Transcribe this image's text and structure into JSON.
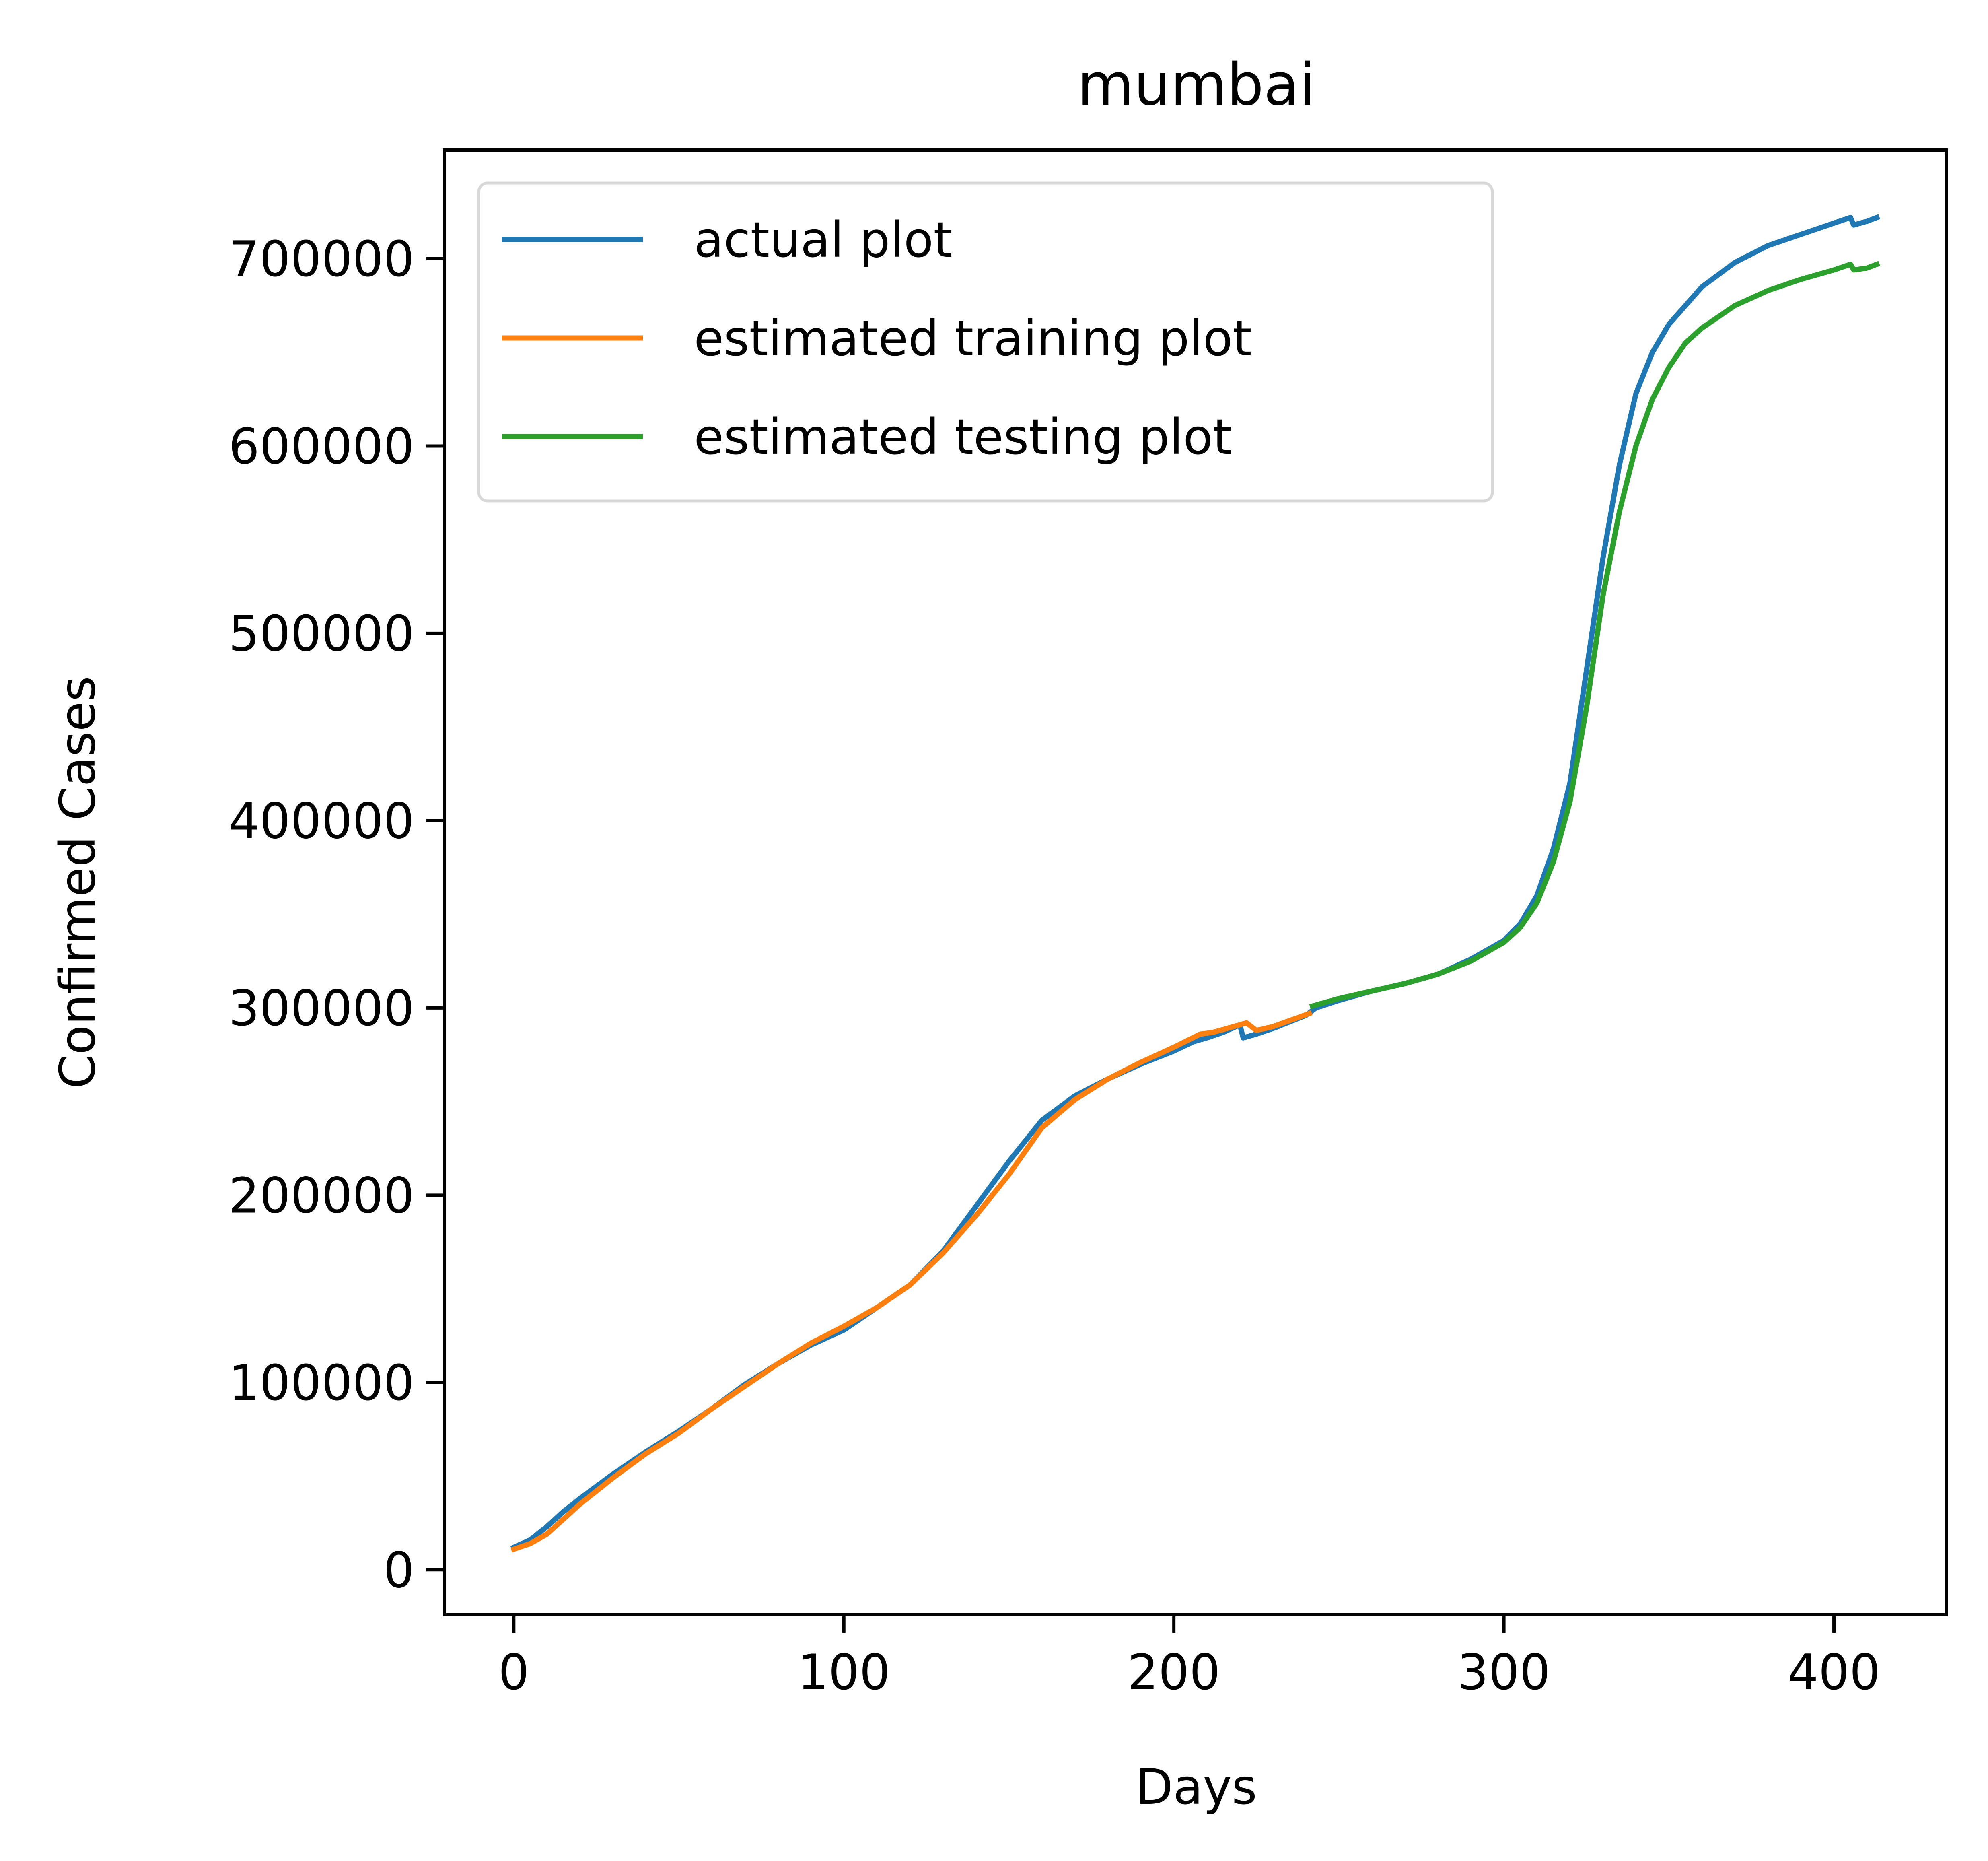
{
  "chart_data": {
    "type": "line",
    "title": "mumbai",
    "xlabel": "Days",
    "ylabel": "Confirmed Cases",
    "xlim": [
      -21,
      434
    ],
    "ylim": [
      -24000,
      758000
    ],
    "xticks": [
      0,
      100,
      200,
      300,
      400
    ],
    "xtick_labels": [
      "0",
      "100",
      "200",
      "300",
      "400"
    ],
    "yticks": [
      0,
      100000,
      200000,
      300000,
      400000,
      500000,
      600000,
      700000
    ],
    "ytick_labels": [
      "0",
      "100000",
      "200000",
      "300000",
      "400000",
      "500000",
      "600000",
      "700000"
    ],
    "grid": false,
    "legend_position": "upper-left",
    "series": [
      {
        "name": "actual plot",
        "color": "#1f77b4",
        "points": [
          [
            0,
            12000
          ],
          [
            5,
            16000
          ],
          [
            10,
            23000
          ],
          [
            15,
            31000
          ],
          [
            20,
            38000
          ],
          [
            30,
            51000
          ],
          [
            40,
            63000
          ],
          [
            50,
            74000
          ],
          [
            60,
            86000
          ],
          [
            70,
            99000
          ],
          [
            80,
            110000
          ],
          [
            90,
            120000
          ],
          [
            100,
            128000
          ],
          [
            110,
            140000
          ],
          [
            120,
            152000
          ],
          [
            130,
            170000
          ],
          [
            140,
            194000
          ],
          [
            150,
            218000
          ],
          [
            160,
            240000
          ],
          [
            170,
            253000
          ],
          [
            180,
            262000
          ],
          [
            190,
            270000
          ],
          [
            200,
            277000
          ],
          [
            206,
            282000
          ],
          [
            210,
            284000
          ],
          [
            215,
            287000
          ],
          [
            220,
            291000
          ],
          [
            221,
            284000
          ],
          [
            225,
            286000
          ],
          [
            230,
            289000
          ],
          [
            240,
            296000
          ],
          [
            243,
            300000
          ],
          [
            250,
            304000
          ],
          [
            260,
            309000
          ],
          [
            270,
            313000
          ],
          [
            280,
            318000
          ],
          [
            290,
            326000
          ],
          [
            300,
            336000
          ],
          [
            305,
            345000
          ],
          [
            310,
            360000
          ],
          [
            315,
            385000
          ],
          [
            320,
            420000
          ],
          [
            325,
            480000
          ],
          [
            330,
            540000
          ],
          [
            335,
            590000
          ],
          [
            340,
            628000
          ],
          [
            345,
            650000
          ],
          [
            350,
            665000
          ],
          [
            355,
            675000
          ],
          [
            360,
            685000
          ],
          [
            370,
            698000
          ],
          [
            380,
            707000
          ],
          [
            390,
            713000
          ],
          [
            400,
            719000
          ],
          [
            405,
            722000
          ],
          [
            406,
            718000
          ],
          [
            410,
            720000
          ],
          [
            413,
            722000
          ]
        ]
      },
      {
        "name": "estimated training plot",
        "color": "#ff7f0e",
        "points": [
          [
            0,
            11000
          ],
          [
            5,
            14000
          ],
          [
            10,
            19000
          ],
          [
            15,
            27000
          ],
          [
            20,
            35000
          ],
          [
            30,
            49000
          ],
          [
            40,
            62000
          ],
          [
            50,
            73000
          ],
          [
            60,
            86000
          ],
          [
            70,
            98000
          ],
          [
            80,
            110000
          ],
          [
            90,
            121000
          ],
          [
            100,
            130000
          ],
          [
            110,
            140000
          ],
          [
            120,
            152000
          ],
          [
            130,
            169000
          ],
          [
            140,
            189000
          ],
          [
            150,
            211000
          ],
          [
            160,
            236000
          ],
          [
            170,
            251000
          ],
          [
            180,
            262000
          ],
          [
            190,
            271000
          ],
          [
            200,
            279000
          ],
          [
            208,
            286000
          ],
          [
            212,
            287000
          ],
          [
            222,
            292000
          ],
          [
            225,
            288000
          ],
          [
            230,
            290000
          ],
          [
            241,
            297000
          ]
        ]
      },
      {
        "name": "estimated testing plot",
        "color": "#2ca02c",
        "points": [
          [
            242,
            301000
          ],
          [
            250,
            305000
          ],
          [
            260,
            309000
          ],
          [
            270,
            313000
          ],
          [
            280,
            318000
          ],
          [
            290,
            325000
          ],
          [
            300,
            335000
          ],
          [
            305,
            343000
          ],
          [
            310,
            356000
          ],
          [
            315,
            378000
          ],
          [
            320,
            410000
          ],
          [
            325,
            460000
          ],
          [
            330,
            520000
          ],
          [
            335,
            565000
          ],
          [
            340,
            600000
          ],
          [
            345,
            625000
          ],
          [
            350,
            642000
          ],
          [
            355,
            655000
          ],
          [
            360,
            663000
          ],
          [
            370,
            675000
          ],
          [
            380,
            683000
          ],
          [
            390,
            689000
          ],
          [
            400,
            694000
          ],
          [
            405,
            697000
          ],
          [
            406,
            694000
          ],
          [
            410,
            695000
          ],
          [
            413,
            697000
          ]
        ]
      }
    ]
  }
}
